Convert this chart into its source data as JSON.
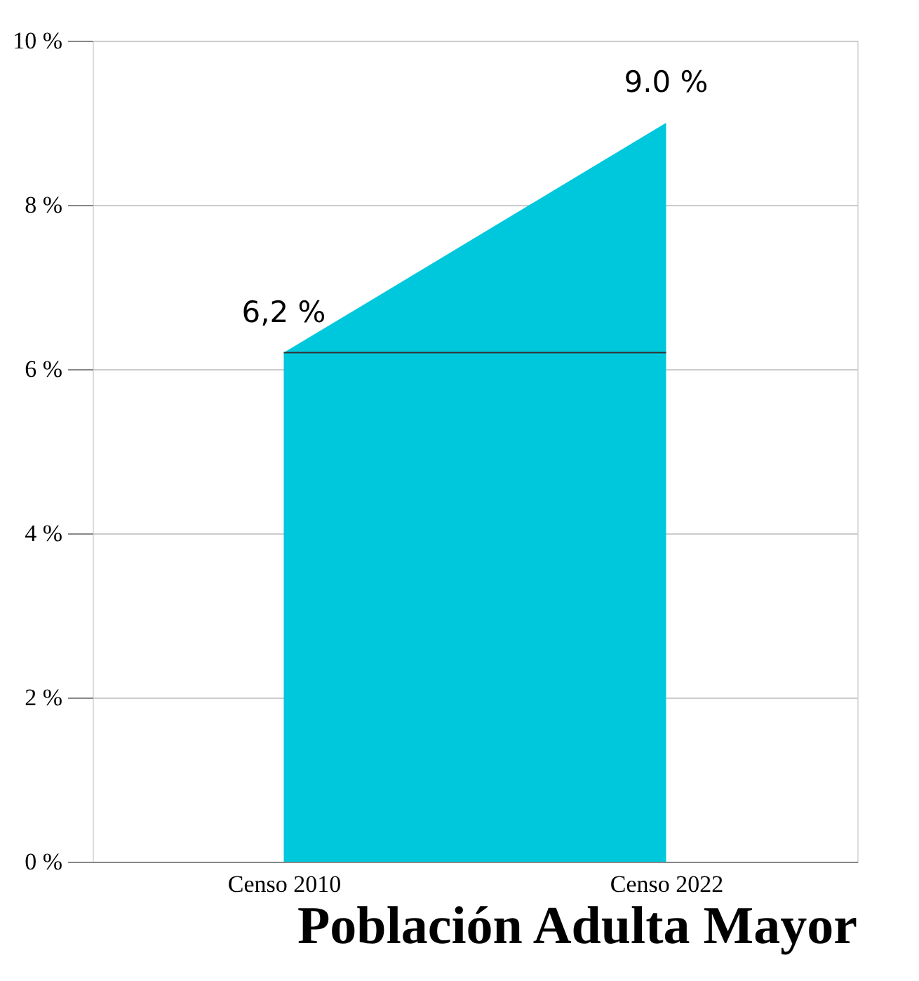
{
  "chart_data": {
    "type": "area",
    "title": "Población Adulta Mayor",
    "categories": [
      "Censo 2010",
      "Censo 2022"
    ],
    "series": [
      {
        "color": "#00c8dc",
        "values": [
          6.2,
          9.0
        ],
        "value_labels": [
          "6,2 %",
          "9.0 %"
        ]
      }
    ],
    "ylim": [
      0,
      10
    ],
    "yticks": [
      {
        "value": 0,
        "label": "0 %"
      },
      {
        "value": 2,
        "label": "2 %"
      },
      {
        "value": 4,
        "label": "4 %"
      },
      {
        "value": 6,
        "label": "6 %"
      },
      {
        "value": 8,
        "label": "8 %"
      },
      {
        "value": 10,
        "label": "10 %"
      }
    ],
    "ref_lines": [
      {
        "axis": "y",
        "value": 6.2,
        "color": "#333333"
      }
    ],
    "grid": "y"
  }
}
